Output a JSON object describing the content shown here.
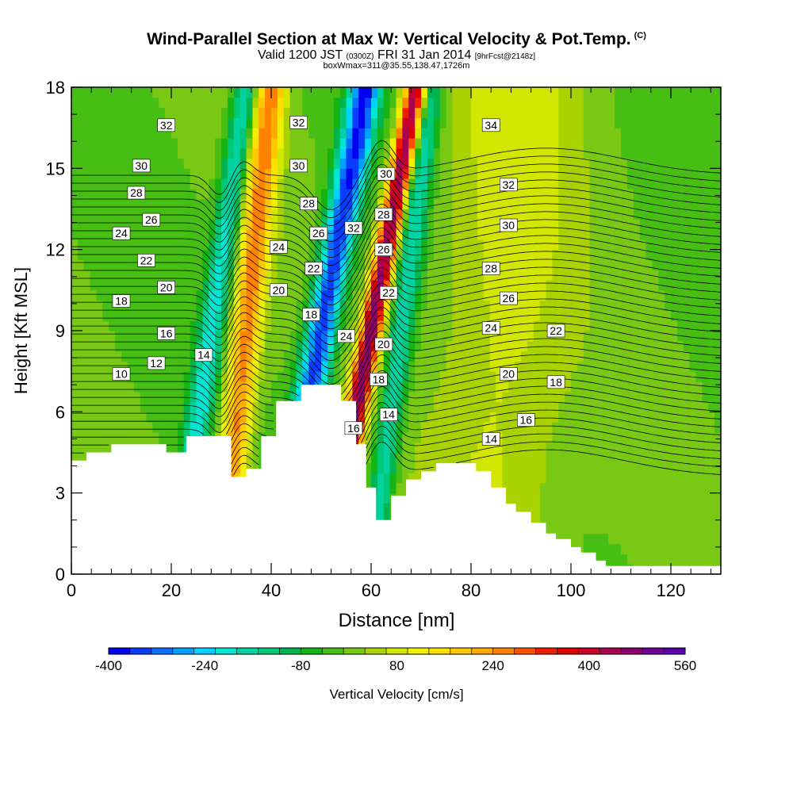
{
  "title": {
    "main": "Wind-Parallel Section at Max W: Vertical Velocity & Pot.Temp.",
    "main_mark": "(C)",
    "line2_a": "Valid 1200 JST",
    "line2_b": "(0300Z)",
    "line2_c": "FRI 31 Jan 2014",
    "line2_d": "[9hrFcst@2148z]",
    "line3": "boxWmax=311@35.55,138.47,1726m"
  },
  "chart_data": {
    "type": "heatmap",
    "xlabel": "Distance [nm]",
    "ylabel": "Height [Kft MSL]",
    "xlim": [
      0,
      130
    ],
    "ylim": [
      0,
      18
    ],
    "x_ticks": [
      0,
      20,
      40,
      60,
      80,
      100,
      120
    ],
    "y_ticks": [
      0,
      3,
      6,
      9,
      12,
      15,
      18
    ],
    "colorbar": {
      "label": "Vertical Velocity [cm/s]",
      "min": -400,
      "max": 560,
      "step": 40,
      "tick_labels": [
        -400,
        -240,
        -80,
        80,
        240,
        400,
        560
      ],
      "colors": [
        "#0000f0",
        "#0a3cff",
        "#0a6eff",
        "#00a0ff",
        "#00d2ff",
        "#00e6d2",
        "#00d2a0",
        "#00c878",
        "#00b450",
        "#14b414",
        "#46be14",
        "#78c814",
        "#aad200",
        "#d2e600",
        "#f0f000",
        "#ffe100",
        "#ffc800",
        "#ffaa00",
        "#ff8200",
        "#ff5000",
        "#f01e00",
        "#dc0000",
        "#c8002d",
        "#aa0050",
        "#8c006e",
        "#6e0096",
        "#5a00aa"
      ]
    },
    "terrain_height_kft": {
      "x": [
        0,
        3,
        3,
        8,
        8,
        13,
        13,
        19,
        19,
        23,
        23,
        32,
        32,
        35,
        35,
        38,
        38,
        41,
        41,
        46,
        46,
        48,
        48,
        54,
        54,
        57,
        57,
        59,
        59,
        61,
        61,
        64,
        64,
        67,
        67,
        70,
        70,
        73,
        73,
        75,
        75,
        81,
        81,
        84,
        84,
        87,
        87,
        89,
        89,
        92,
        92,
        95,
        95,
        97,
        97,
        100,
        100,
        102,
        102,
        105,
        105,
        107,
        107,
        109,
        109,
        130
      ],
      "y": [
        4.2,
        4.2,
        4.5,
        4.5,
        4.8,
        4.8,
        4.8,
        4.8,
        4.5,
        4.5,
        5.1,
        5.1,
        3.6,
        3.6,
        3.9,
        3.9,
        5.1,
        5.1,
        6.4,
        6.4,
        7.0,
        7.0,
        7.0,
        7.0,
        6.4,
        6.4,
        4.8,
        4.8,
        3.2,
        3.2,
        2.0,
        2.0,
        2.9,
        2.9,
        3.5,
        3.5,
        3.8,
        3.8,
        4.1,
        4.1,
        4.1,
        4.1,
        3.8,
        3.8,
        3.2,
        3.2,
        2.6,
        2.6,
        2.3,
        2.3,
        1.9,
        1.9,
        1.5,
        1.5,
        1.3,
        1.3,
        1.0,
        1.0,
        0.8,
        0.8,
        0.5,
        0.5,
        0.3,
        0.3,
        0.3,
        0.3
      ]
    },
    "velocity_bands": [
      {
        "x_center": 28,
        "tilt": 7,
        "width": 2.5,
        "value_cm_s": -220
      },
      {
        "x_center": 35,
        "tilt": 5,
        "width": 3,
        "value_cm_s": 300
      },
      {
        "x_center": 50,
        "tilt": 9,
        "width": 3.2,
        "value_cm_s": -400
      },
      {
        "x_center": 60,
        "tilt": 9,
        "width": 2.2,
        "value_cm_s": 540
      },
      {
        "x_center": 66,
        "tilt": 6,
        "width": 2.5,
        "value_cm_s": -200
      },
      {
        "x_center": 86,
        "tilt": 3,
        "width": 14,
        "value_cm_s": 100
      }
    ],
    "theta_contours_c": [
      10,
      12,
      14,
      16,
      18,
      20,
      22,
      24,
      26,
      28,
      30,
      32,
      34
    ],
    "contour_labels": [
      {
        "t": "32",
        "x": 19,
        "y": 16.6
      },
      {
        "t": "30",
        "x": 14,
        "y": 15.1
      },
      {
        "t": "28",
        "x": 13,
        "y": 14.1
      },
      {
        "t": "26",
        "x": 16,
        "y": 13.1
      },
      {
        "t": "24",
        "x": 10,
        "y": 12.6
      },
      {
        "t": "22",
        "x": 15,
        "y": 11.6
      },
      {
        "t": "20",
        "x": 19,
        "y": 10.6
      },
      {
        "t": "18",
        "x": 10,
        "y": 10.1
      },
      {
        "t": "16",
        "x": 19,
        "y": 8.9
      },
      {
        "t": "12",
        "x": 17,
        "y": 7.8
      },
      {
        "t": "10",
        "x": 10,
        "y": 7.4
      },
      {
        "t": "14",
        "x": 26.5,
        "y": 8.1
      },
      {
        "t": "32",
        "x": 45.5,
        "y": 16.7
      },
      {
        "t": "30",
        "x": 45.5,
        "y": 15.1
      },
      {
        "t": "28",
        "x": 47.5,
        "y": 13.7
      },
      {
        "t": "26",
        "x": 49.5,
        "y": 12.6
      },
      {
        "t": "24",
        "x": 41.5,
        "y": 12.1
      },
      {
        "t": "22",
        "x": 48.5,
        "y": 11.3
      },
      {
        "t": "20",
        "x": 41.5,
        "y": 10.5
      },
      {
        "t": "18",
        "x": 48,
        "y": 9.6
      },
      {
        "t": "24",
        "x": 55,
        "y": 8.8
      },
      {
        "t": "32",
        "x": 56.5,
        "y": 12.8
      },
      {
        "t": "16",
        "x": 56.5,
        "y": 5.4
      },
      {
        "t": "30",
        "x": 63,
        "y": 14.8
      },
      {
        "t": "28",
        "x": 62.5,
        "y": 13.3
      },
      {
        "t": "26",
        "x": 62.5,
        "y": 12.0
      },
      {
        "t": "22",
        "x": 63.5,
        "y": 10.4
      },
      {
        "t": "20",
        "x": 62.5,
        "y": 8.5
      },
      {
        "t": "18",
        "x": 61.5,
        "y": 7.2
      },
      {
        "t": "14",
        "x": 63.5,
        "y": 5.9
      },
      {
        "t": "34",
        "x": 84,
        "y": 16.6
      },
      {
        "t": "32",
        "x": 87.5,
        "y": 14.4
      },
      {
        "t": "30",
        "x": 87.5,
        "y": 12.9
      },
      {
        "t": "28",
        "x": 84,
        "y": 11.3
      },
      {
        "t": "26",
        "x": 87.5,
        "y": 10.2
      },
      {
        "t": "24",
        "x": 84,
        "y": 9.1
      },
      {
        "t": "22",
        "x": 97,
        "y": 9.0
      },
      {
        "t": "20",
        "x": 87.5,
        "y": 7.4
      },
      {
        "t": "18",
        "x": 97,
        "y": 7.1
      },
      {
        "t": "16",
        "x": 91,
        "y": 5.7
      },
      {
        "t": "14",
        "x": 84,
        "y": 5.0
      }
    ]
  }
}
